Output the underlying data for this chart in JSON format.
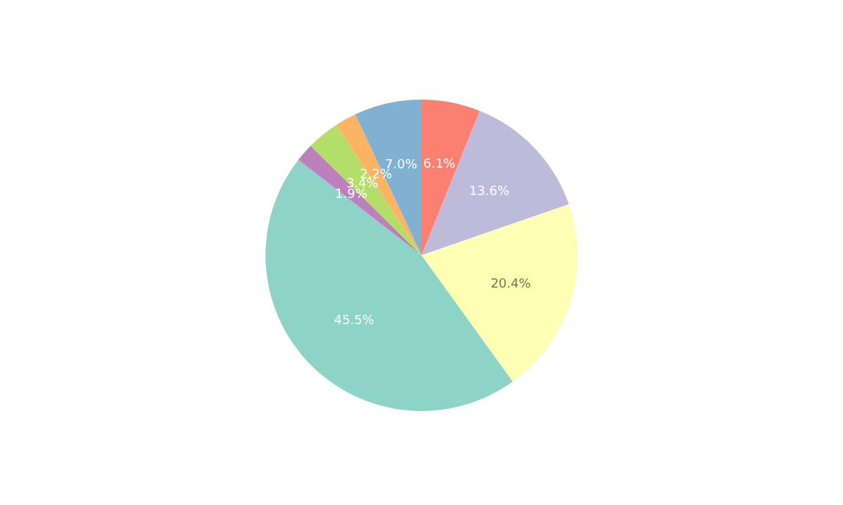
{
  "chart_data": {
    "type": "pie",
    "categories": [
      null,
      null,
      null,
      null,
      null,
      null,
      null,
      null
    ],
    "values": [
      6.1,
      13.6,
      20.4,
      45.5,
      1.9,
      3.4,
      2.2,
      7.0
    ],
    "colors": [
      "#fb8072",
      "#bebada",
      "#ffffb3",
      "#8dd3c7",
      "#bc80bd",
      "#b3de69",
      "#fdb462",
      "#80b1d3"
    ],
    "value_labels": [
      "6.1%",
      "13.6%",
      "20.4%",
      "45.5%",
      "1.9%",
      "3.4%",
      "2.2%",
      "7.0%"
    ],
    "legend": false
  }
}
